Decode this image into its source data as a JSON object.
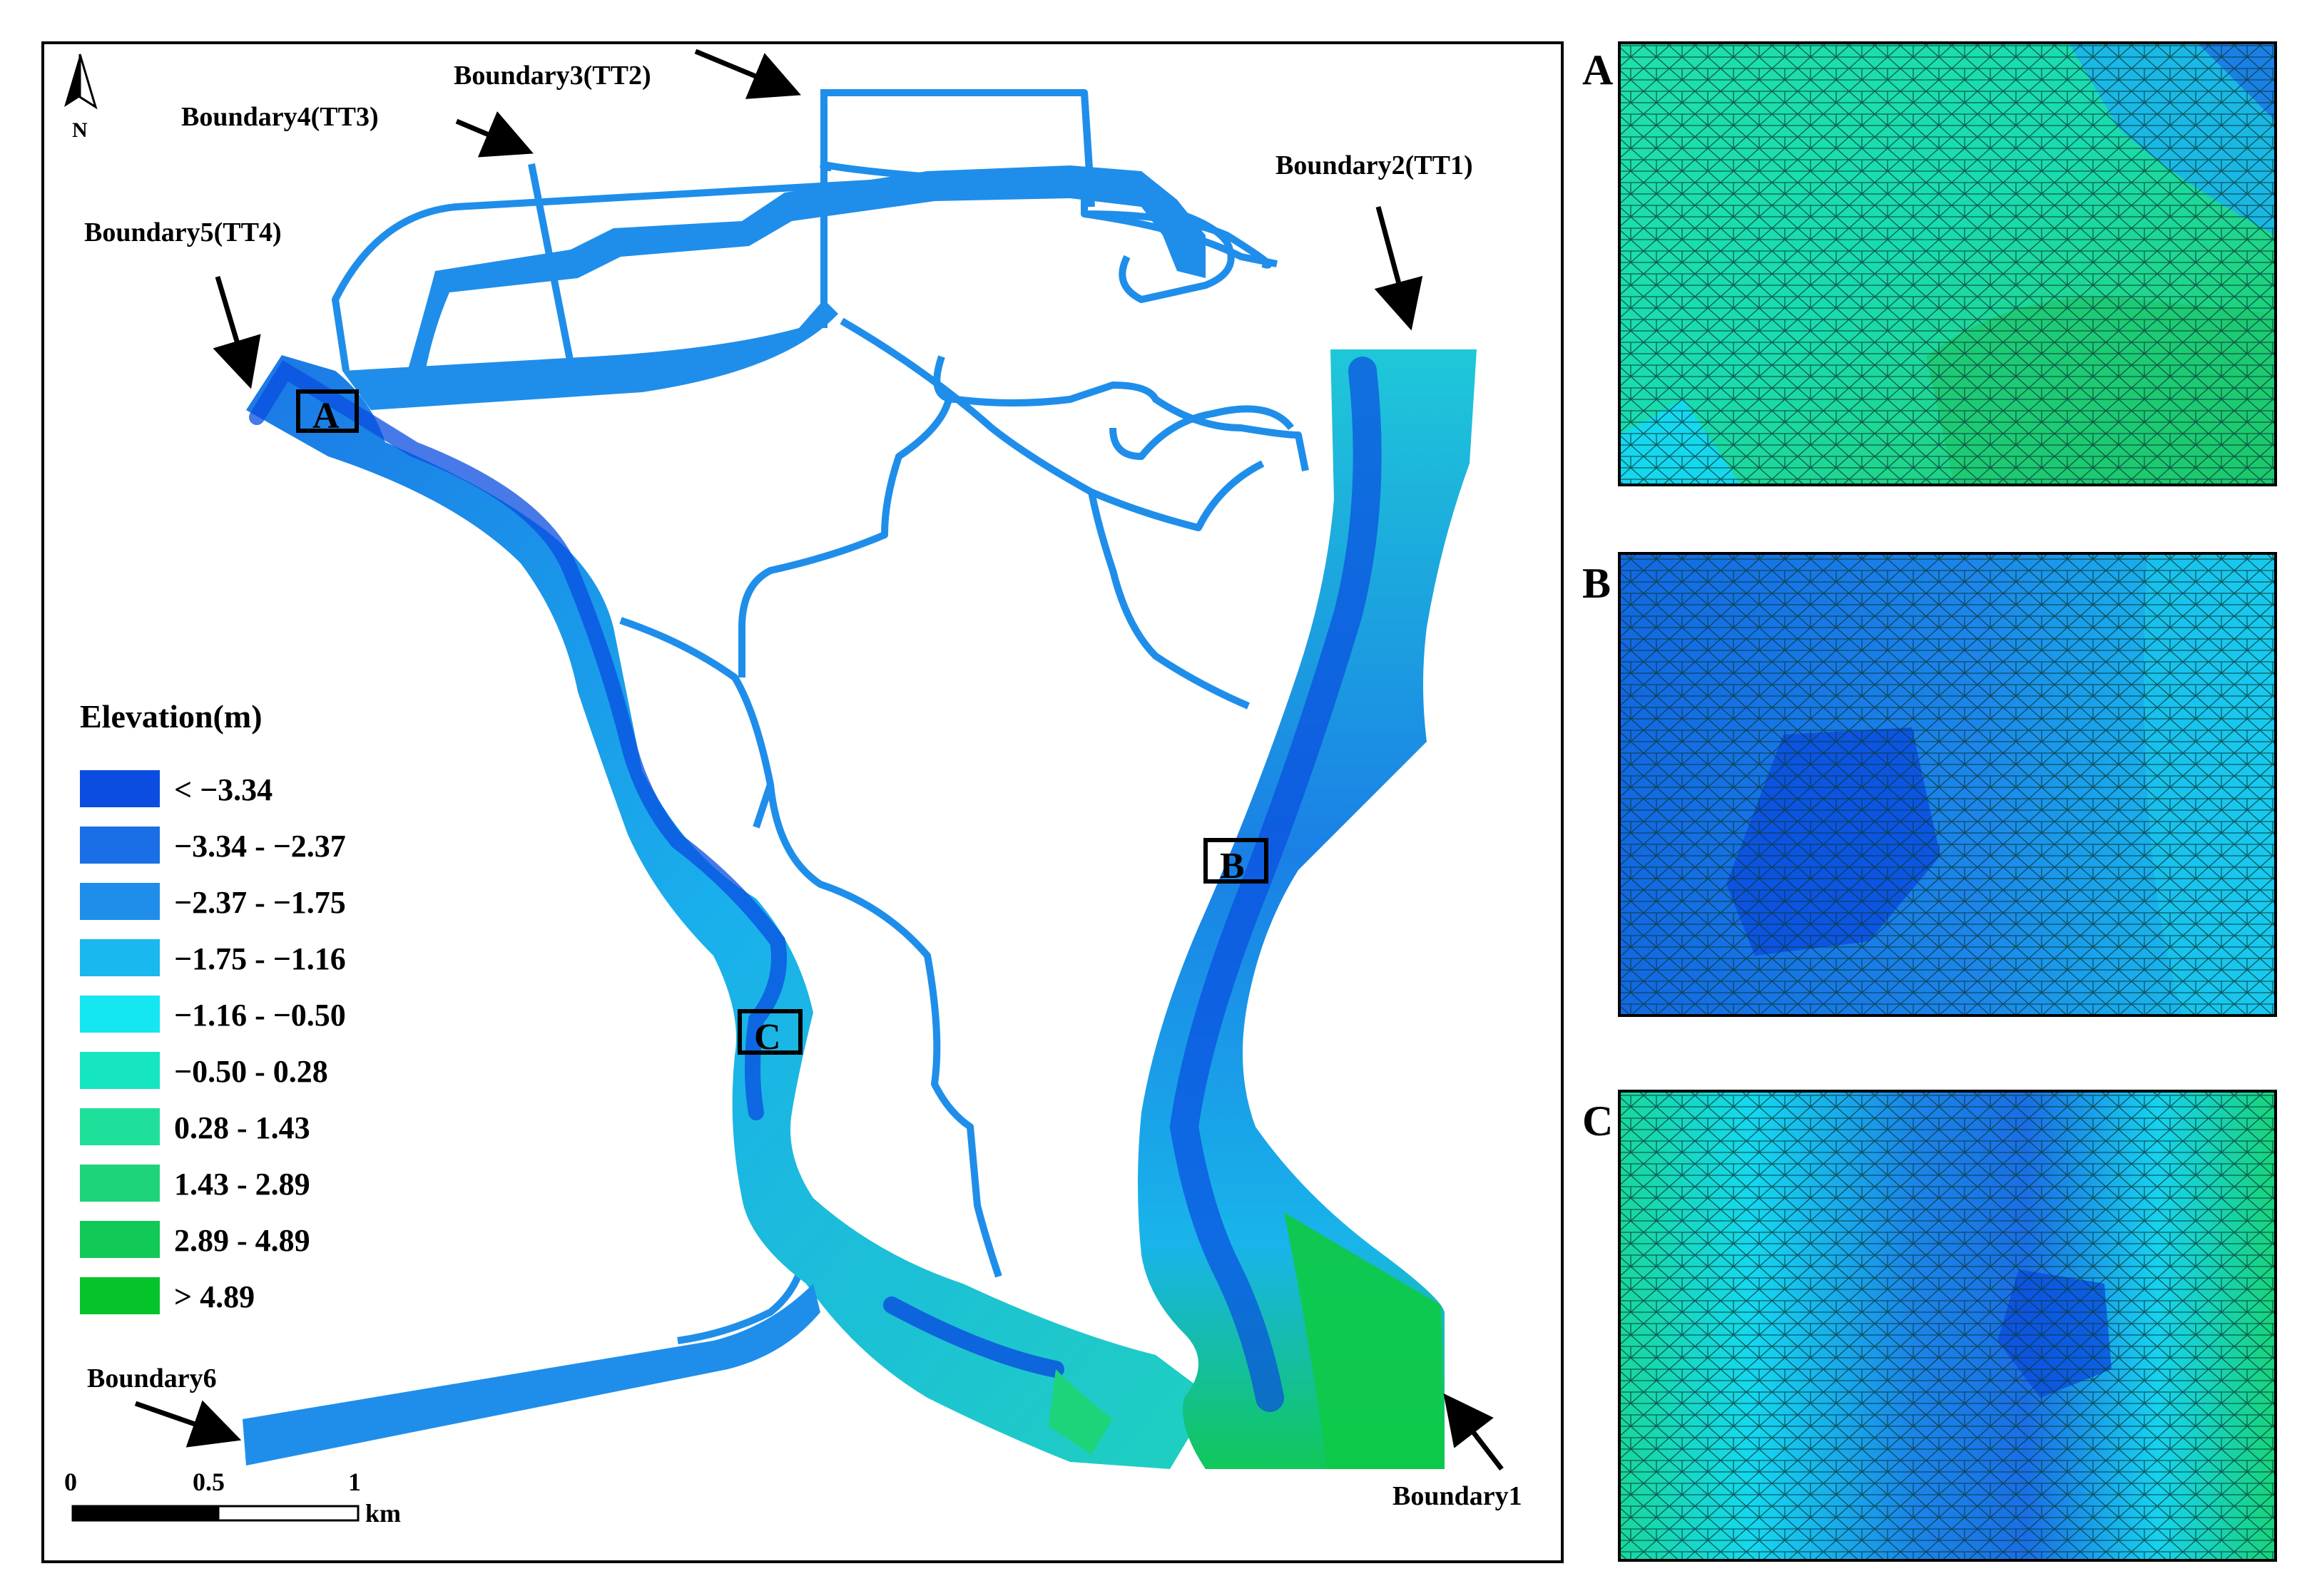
{
  "north_arrow": {
    "label": "N"
  },
  "boundaries": {
    "b1": "Boundary1",
    "b2": "Boundary2(TT1)",
    "b3": "Boundary3(TT2)",
    "b4": "Boundary4(TT3)",
    "b5": "Boundary5(TT4)",
    "b6": "Boundary6"
  },
  "zoom_boxes": {
    "a": "A",
    "b": "B",
    "c": "C"
  },
  "legend": {
    "title": "Elevation(m)",
    "items": [
      {
        "label": "< −3.34",
        "color": "#0a4de0"
      },
      {
        "label": "−3.34 - −2.37",
        "color": "#1a6fe6"
      },
      {
        "label": "−2.37 - −1.75",
        "color": "#1f8eea"
      },
      {
        "label": "−1.75 - −1.16",
        "color": "#19b8ef"
      },
      {
        "label": "−1.16 - −0.50",
        "color": "#14e6f2"
      },
      {
        "label": "−0.50 - 0.28",
        "color": "#16e5c2"
      },
      {
        "label": "0.28 - 1.43",
        "color": "#1fe09a"
      },
      {
        "label": "1.43 - 2.89",
        "color": "#1ed47a"
      },
      {
        "label": "2.89 - 4.89",
        "color": "#11c956"
      },
      {
        "label": "> 4.89",
        "color": "#05c42b"
      }
    ]
  },
  "scale_bar": {
    "tick0": "0",
    "tick1": "0.5",
    "tick2": "1",
    "unit": "km"
  },
  "panels": {
    "a": "A",
    "b": "B",
    "c": "C"
  }
}
